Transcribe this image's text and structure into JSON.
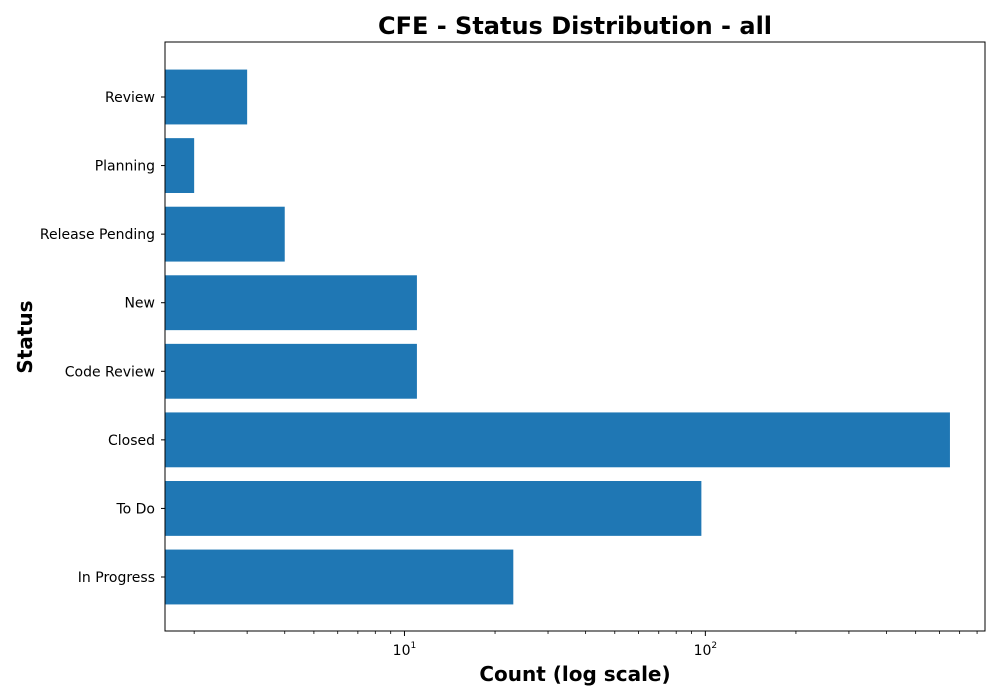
{
  "chart_data": {
    "type": "bar",
    "orientation": "horizontal",
    "title": "CFE - Status Distribution - all",
    "xlabel": "Count (log scale)",
    "ylabel": "Status",
    "x_scale": "log",
    "xlim": [
      1.6,
      850
    ],
    "x_tick_labels": [
      {
        "base": "10",
        "exp": "1",
        "value": 10
      },
      {
        "base": "10",
        "exp": "2",
        "value": 100
      }
    ],
    "categories": [
      "In Progress",
      "To Do",
      "Closed",
      "Code Review",
      "New",
      "Release Pending",
      "Planning",
      "Review"
    ],
    "values": [
      23,
      97,
      650,
      11,
      11,
      4,
      2,
      3
    ],
    "bar_color": "#1f77b4",
    "grid": false,
    "legend": "none"
  }
}
